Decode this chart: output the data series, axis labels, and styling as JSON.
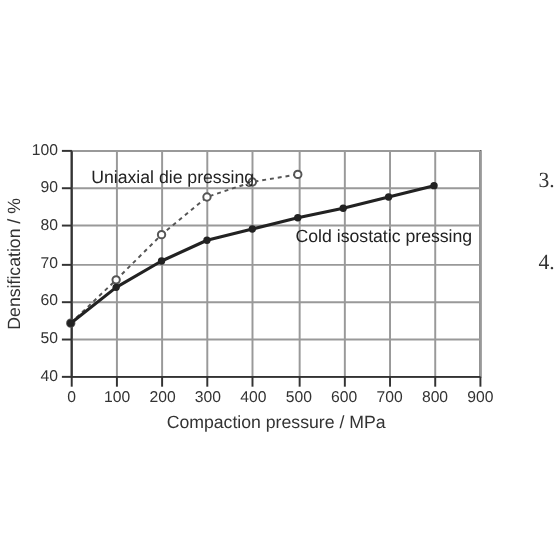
{
  "chart_data": {
    "type": "line",
    "xlabel": "Compaction pressure / MPa",
    "ylabel": "Densification / %",
    "xlim": [
      0,
      900
    ],
    "xticks": [
      0,
      100,
      200,
      300,
      400,
      500,
      600,
      700,
      800,
      900
    ],
    "ylim": [
      40,
      100
    ],
    "yticks": [
      40,
      50,
      60,
      70,
      80,
      90,
      100
    ],
    "grid": true,
    "series": [
      {
        "name": "Uniaxial die pressing",
        "color": "#555555",
        "marker": "circle",
        "line_style": "dotted",
        "x": [
          0,
          100,
          200,
          300,
          400,
          500
        ],
        "values": [
          54,
          65.5,
          77.5,
          87.5,
          91.5,
          93.5
        ]
      },
      {
        "name": "Cold isostatic pressing",
        "color": "#222222",
        "marker": "circle",
        "line_style": "solid",
        "x": [
          0,
          100,
          200,
          300,
          400,
          500,
          600,
          700,
          800
        ],
        "values": [
          54,
          63.5,
          70.5,
          76,
          79,
          82,
          84.5,
          87.5,
          90.5
        ]
      }
    ],
    "annotations": [
      "3.",
      "4."
    ]
  }
}
